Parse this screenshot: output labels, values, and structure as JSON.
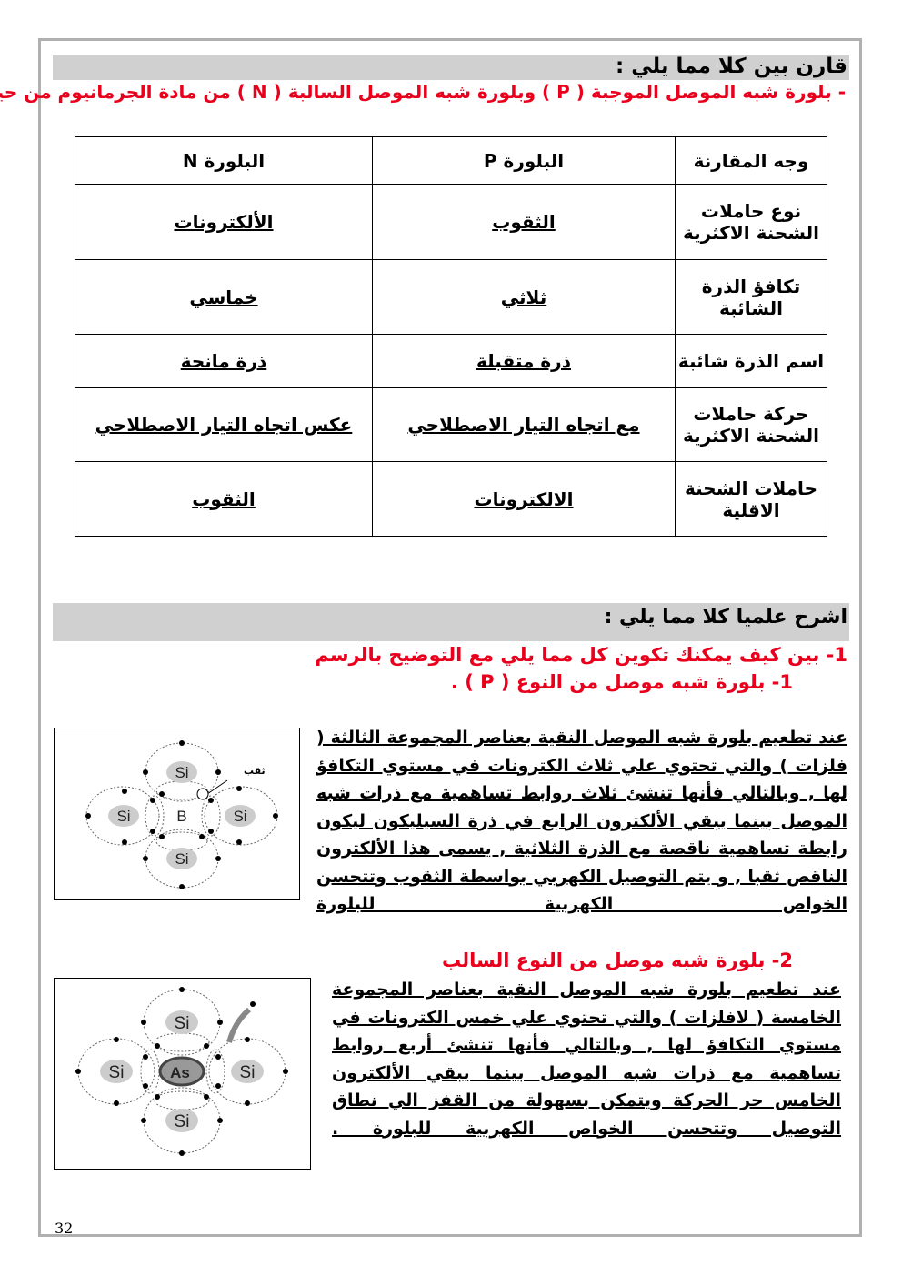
{
  "section1": {
    "heading": "قارن بين كلا مما يلي :",
    "subheading": "- بلورة شبه الموصل الموجبة ( P ) وبلورة شبه الموصل السالبة ( N ) من مادة الجرمانيوم من حيث"
  },
  "table": {
    "headers": [
      "وجه المقارنة",
      "البلورة P",
      "البلورة N"
    ],
    "rows": [
      [
        "نوع حاملات الشحنة الاكثرية",
        "الثقوب",
        "الألكترونات"
      ],
      [
        "تكافؤ الذرة الشائبة",
        "ثلاثي",
        "خماسي"
      ],
      [
        "اسم الذرة شائبة",
        "ذرة متقبلة",
        "ذرة مانحة"
      ],
      [
        "حركة حاملات الشحنة الاكثرية",
        "مع اتجاه التيار الاصطلاحي",
        "عكس اتجاه التيار الاصطلاحي"
      ],
      [
        "حاملات الشحنة الاقلية",
        "الالكترونات",
        "الثقوب"
      ]
    ]
  },
  "section2": {
    "heading": "اشرح علميا كلا مما يلي :",
    "question": "1- بين كيف يمكنك تكوين كل مما يلي مع التوضيح بالرسم",
    "item1": "1- بلورة شبه موصل من النوع ( P ) .",
    "item2": "2- بلورة شبه موصل من النوع السالب"
  },
  "p_text": "عند تطعيم بلورة شبه الموصل النقية بعناصر المجموعة الثالثة ( فلزات ) والتي تحتوي علي ثلاث الكترونات في مستوي التكافؤ لها , وبالتالي فأنها تنشئ ثلاث روابط تساهمية مع ذرات شبه الموصل بينما يبقي الألكترون الرابع في ذرة السيليكون ليكون رابطة تساهمية ناقصة مع الذرة الثلاثية , يسمى هذا الألكترون الناقص ثقبا , و يتم التوصيل الكهربي بواسطة الثقوب وتتحسن الخواص الكهربية للبلورة",
  "n_text": "عند تطعيم بلورة شبه الموصل النقية بعناصر المجموعة الخامسة ( لافلزات ) والتي تحتوي علي خمس الكترونات في مستوي التكافؤ لها , وبالتالي فأنها تنشئ أربع روابط تساهمية مع ذرات شبه الموصل بينما يبقي الألكترون الخامس حر الحركة ويتمكن بسهولة من القفز الي نطاق التوصيل وتتحسن الخواص الكهربية للبلورة .",
  "diagram_p": {
    "center": "B",
    "neighbor": "Si",
    "hole_label": "ثقب"
  },
  "diagram_n": {
    "center": "As",
    "neighbor": "Si"
  },
  "page_number": "32",
  "colors": {
    "heading_bar": "#d0d0d0",
    "accent_red": "#e8001c"
  }
}
